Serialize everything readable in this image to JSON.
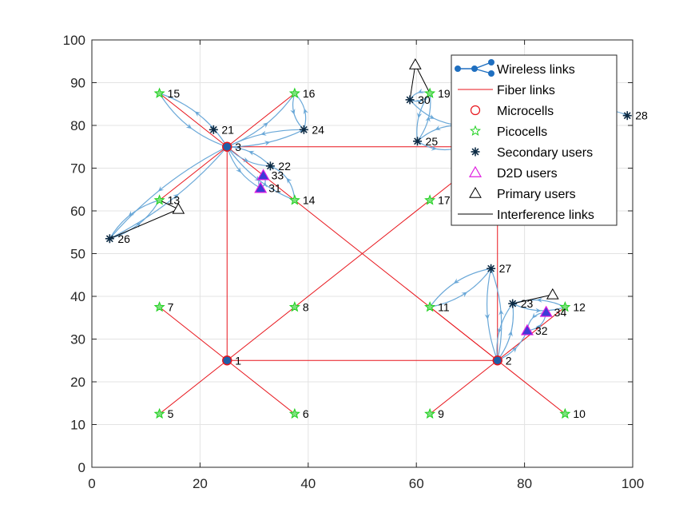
{
  "chart_data": {
    "type": "scatter",
    "xlim": [
      0,
      100
    ],
    "ylim": [
      0,
      100
    ],
    "xticks": [
      0,
      20,
      40,
      60,
      80,
      100
    ],
    "yticks": [
      0,
      10,
      20,
      30,
      40,
      50,
      60,
      70,
      80,
      90,
      100
    ],
    "grid": true,
    "legend_position": "top-right",
    "legend": [
      {
        "label": "Wireless links",
        "kind": "wireless"
      },
      {
        "label": "Fiber links",
        "kind": "fiber"
      },
      {
        "label": "Microcells",
        "kind": "microcell"
      },
      {
        "label": "Picocells",
        "kind": "picocell"
      },
      {
        "label": "Secondary users",
        "kind": "secondary"
      },
      {
        "label": "D2D users",
        "kind": "d2d"
      },
      {
        "label": "Primary users",
        "kind": "primary"
      },
      {
        "label": "Interference links",
        "kind": "interference"
      }
    ],
    "colors": {
      "wireless": "#6aa8d8",
      "fiber": "#e8141b",
      "microcell": "#e8141b",
      "picocell": "#1fd11f",
      "secondary": "#0b2a44",
      "d2d": "#e01ee0",
      "primary": "#000000",
      "interference": "#000000",
      "grid": "#e3e3e3"
    },
    "nodes": [
      {
        "id": "1",
        "type": "microcell",
        "x": 25,
        "y": 25
      },
      {
        "id": "2",
        "type": "microcell",
        "x": 75,
        "y": 25
      },
      {
        "id": "3",
        "type": "microcell",
        "x": 25,
        "y": 75
      },
      {
        "id": "5",
        "type": "picocell",
        "x": 12.5,
        "y": 12.5
      },
      {
        "id": "6",
        "type": "picocell",
        "x": 37.5,
        "y": 12.5
      },
      {
        "id": "7",
        "type": "picocell",
        "x": 12.5,
        "y": 37.5
      },
      {
        "id": "8",
        "type": "picocell",
        "x": 37.5,
        "y": 37.5
      },
      {
        "id": "9",
        "type": "picocell",
        "x": 62.5,
        "y": 12.5
      },
      {
        "id": "10",
        "type": "picocell",
        "x": 87.5,
        "y": 12.5
      },
      {
        "id": "11",
        "type": "picocell",
        "x": 62.5,
        "y": 37.5
      },
      {
        "id": "12",
        "type": "picocell",
        "x": 87.5,
        "y": 37.5
      },
      {
        "id": "13",
        "type": "picocell",
        "x": 12.5,
        "y": 62.5
      },
      {
        "id": "14",
        "type": "picocell",
        "x": 37.5,
        "y": 62.5
      },
      {
        "id": "15",
        "type": "picocell",
        "x": 12.5,
        "y": 87.5
      },
      {
        "id": "16",
        "type": "picocell",
        "x": 37.5,
        "y": 87.5
      },
      {
        "id": "17",
        "type": "picocell",
        "x": 62.5,
        "y": 62.5
      },
      {
        "id": "19",
        "type": "picocell",
        "x": 62.5,
        "y": 87.5
      },
      {
        "id": "21",
        "type": "secondary",
        "x": 22.5,
        "y": 79
      },
      {
        "id": "22",
        "type": "secondary",
        "x": 33,
        "y": 70.5
      },
      {
        "id": "23",
        "type": "secondary",
        "x": 77.8,
        "y": 38.3
      },
      {
        "id": "24",
        "type": "secondary",
        "x": 39.2,
        "y": 79
      },
      {
        "id": "25",
        "type": "secondary",
        "x": 60.2,
        "y": 76.3
      },
      {
        "id": "26",
        "type": "secondary",
        "x": 3.3,
        "y": 53.5
      },
      {
        "id": "27",
        "type": "secondary",
        "x": 73.8,
        "y": 46.5
      },
      {
        "id": "28",
        "type": "secondary",
        "x": 99,
        "y": 82.3
      },
      {
        "id": "30",
        "type": "secondary",
        "x": 58.8,
        "y": 86
      },
      {
        "id": "31",
        "type": "d2d",
        "x": 31.2,
        "y": 65.3
      },
      {
        "id": "32",
        "type": "d2d",
        "x": 80.5,
        "y": 32
      },
      {
        "id": "33",
        "type": "d2d",
        "x": 31.7,
        "y": 68.3
      },
      {
        "id": "34",
        "type": "d2d",
        "x": 84,
        "y": 36.3
      }
    ],
    "primary_users": [
      {
        "x": 16,
        "y": 60.4
      },
      {
        "x": 59.8,
        "y": 94.2
      },
      {
        "x": 85.2,
        "y": 40.4
      }
    ],
    "fiber_links": [
      [
        [
          25,
          25
        ],
        [
          75,
          25
        ]
      ],
      [
        [
          25,
          25
        ],
        [
          25,
          75
        ]
      ],
      [
        [
          25,
          75
        ],
        [
          75,
          75
        ]
      ],
      [
        [
          75,
          75
        ],
        [
          75,
          25
        ]
      ],
      [
        [
          25,
          75
        ],
        [
          75,
          25
        ]
      ],
      [
        [
          25,
          25
        ],
        [
          75,
          75
        ]
      ],
      [
        [
          25,
          25
        ],
        [
          12.5,
          12.5
        ]
      ],
      [
        [
          25,
          25
        ],
        [
          37.5,
          12.5
        ]
      ],
      [
        [
          25,
          25
        ],
        [
          12.5,
          37.5
        ]
      ],
      [
        [
          75,
          25
        ],
        [
          62.5,
          12.5
        ]
      ],
      [
        [
          75,
          25
        ],
        [
          87.5,
          12.5
        ]
      ],
      [
        [
          75,
          25
        ],
        [
          62.5,
          37.5
        ]
      ],
      [
        [
          75,
          25
        ],
        [
          87.5,
          37.5
        ]
      ],
      [
        [
          25,
          75
        ],
        [
          12.5,
          62.5
        ]
      ],
      [
        [
          25,
          75
        ],
        [
          12.5,
          87.5
        ]
      ],
      [
        [
          25,
          75
        ],
        [
          37.5,
          87.5
        ]
      ]
    ],
    "wireless_links": [
      {
        "from": [
          25,
          75
        ],
        "to": [
          12.5,
          87.5
        ],
        "bend": 0.18
      },
      {
        "from": [
          12.5,
          87.5
        ],
        "to": [
          25,
          75
        ],
        "bend": 0.18
      },
      {
        "from": [
          25,
          75
        ],
        "to": [
          37.5,
          87.5
        ],
        "bend": 0.15
      },
      {
        "from": [
          37.5,
          87.5
        ],
        "to": [
          39.2,
          79
        ],
        "bend": 0.3
      },
      {
        "from": [
          39.2,
          79
        ],
        "to": [
          37.5,
          87.5
        ],
        "bend": 0.3
      },
      {
        "from": [
          39.2,
          79
        ],
        "to": [
          25,
          75
        ],
        "bend": 0.12
      },
      {
        "from": [
          25,
          75
        ],
        "to": [
          39.2,
          79
        ],
        "bend": 0.12
      },
      {
        "from": [
          25,
          75
        ],
        "to": [
          33,
          70.5
        ],
        "bend": 0.2
      },
      {
        "from": [
          33,
          70.5
        ],
        "to": [
          25,
          75
        ],
        "bend": 0.2
      },
      {
        "from": [
          25,
          75
        ],
        "to": [
          37.5,
          62.5
        ],
        "bend": 0.15
      },
      {
        "from": [
          37.5,
          62.5
        ],
        "to": [
          33,
          70.5
        ],
        "bend": 0.3
      },
      {
        "from": [
          25,
          75
        ],
        "to": [
          31.2,
          65.3
        ],
        "bend": 0.2
      },
      {
        "from": [
          31.2,
          65.3
        ],
        "to": [
          31.7,
          68.3
        ],
        "bend": 0.5
      },
      {
        "from": [
          31.7,
          68.3
        ],
        "to": [
          31.2,
          65.3
        ],
        "bend": 0.5
      },
      {
        "from": [
          25,
          75
        ],
        "to": [
          3.3,
          53.5
        ],
        "bend": 0.1
      },
      {
        "from": [
          3.3,
          53.5
        ],
        "to": [
          25,
          75
        ],
        "bend": 0.1
      },
      {
        "from": [
          12.5,
          62.5
        ],
        "to": [
          3.3,
          53.5
        ],
        "bend": 0.2
      },
      {
        "from": [
          3.3,
          53.5
        ],
        "to": [
          12.5,
          62.5
        ],
        "bend": 0.2
      },
      {
        "from": [
          75,
          25
        ],
        "to": [
          73.8,
          46.5
        ],
        "bend": 0.15
      },
      {
        "from": [
          73.8,
          46.5
        ],
        "to": [
          62.5,
          37.5
        ],
        "bend": 0.2
      },
      {
        "from": [
          62.5,
          37.5
        ],
        "to": [
          73.8,
          46.5
        ],
        "bend": 0.2
      },
      {
        "from": [
          73.8,
          46.5
        ],
        "to": [
          75,
          25
        ],
        "bend": 0.15
      },
      {
        "from": [
          75,
          25
        ],
        "to": [
          77.8,
          38.3
        ],
        "bend": 0.2
      },
      {
        "from": [
          77.8,
          38.3
        ],
        "to": [
          75,
          25
        ],
        "bend": 0.2
      },
      {
        "from": [
          77.8,
          38.3
        ],
        "to": [
          87.5,
          37.5
        ],
        "bend": 0.2
      },
      {
        "from": [
          87.5,
          37.5
        ],
        "to": [
          77.8,
          38.3
        ],
        "bend": 0.2
      },
      {
        "from": [
          75,
          25
        ],
        "to": [
          80.5,
          32
        ],
        "bend": 0.2
      },
      {
        "from": [
          80.5,
          32
        ],
        "to": [
          84,
          36.3
        ],
        "bend": 0.4
      },
      {
        "from": [
          84,
          36.3
        ],
        "to": [
          80.5,
          32
        ],
        "bend": 0.4
      },
      {
        "from": [
          62.5,
          87.5
        ],
        "to": [
          60.2,
          76.3
        ],
        "bend": 0.2
      },
      {
        "from": [
          60.2,
          76.3
        ],
        "to": [
          62.5,
          87.5
        ],
        "bend": 0.2
      },
      {
        "from": [
          58.8,
          86
        ],
        "to": [
          62.5,
          87.5
        ],
        "bend": 0.4
      },
      {
        "from": [
          62.5,
          87.5
        ],
        "to": [
          58.8,
          86
        ],
        "bend": 0.4
      },
      {
        "from": [
          58.8,
          86
        ],
        "to": [
          68,
          80
        ],
        "bend": 0.2
      },
      {
        "from": [
          68,
          80
        ],
        "to": [
          60.2,
          76.3
        ],
        "bend": 0.2
      },
      {
        "from": [
          60.2,
          76.3
        ],
        "to": [
          67,
          74.5
        ],
        "bend": 0.2
      },
      {
        "from": [
          99,
          82.3
        ],
        "to": [
          93,
          83
        ],
        "bend": 0.2
      }
    ],
    "interference_links": [
      [
        [
          3.3,
          53.5
        ],
        [
          16,
          60.4
        ]
      ],
      [
        [
          16,
          60.4
        ],
        [
          12.5,
          62.5
        ]
      ],
      [
        [
          58.8,
          86
        ],
        [
          59.8,
          94.2
        ]
      ],
      [
        [
          59.8,
          94.2
        ],
        [
          62.5,
          87.5
        ]
      ],
      [
        [
          77.8,
          38.3
        ],
        [
          85.2,
          40.4
        ]
      ]
    ]
  }
}
